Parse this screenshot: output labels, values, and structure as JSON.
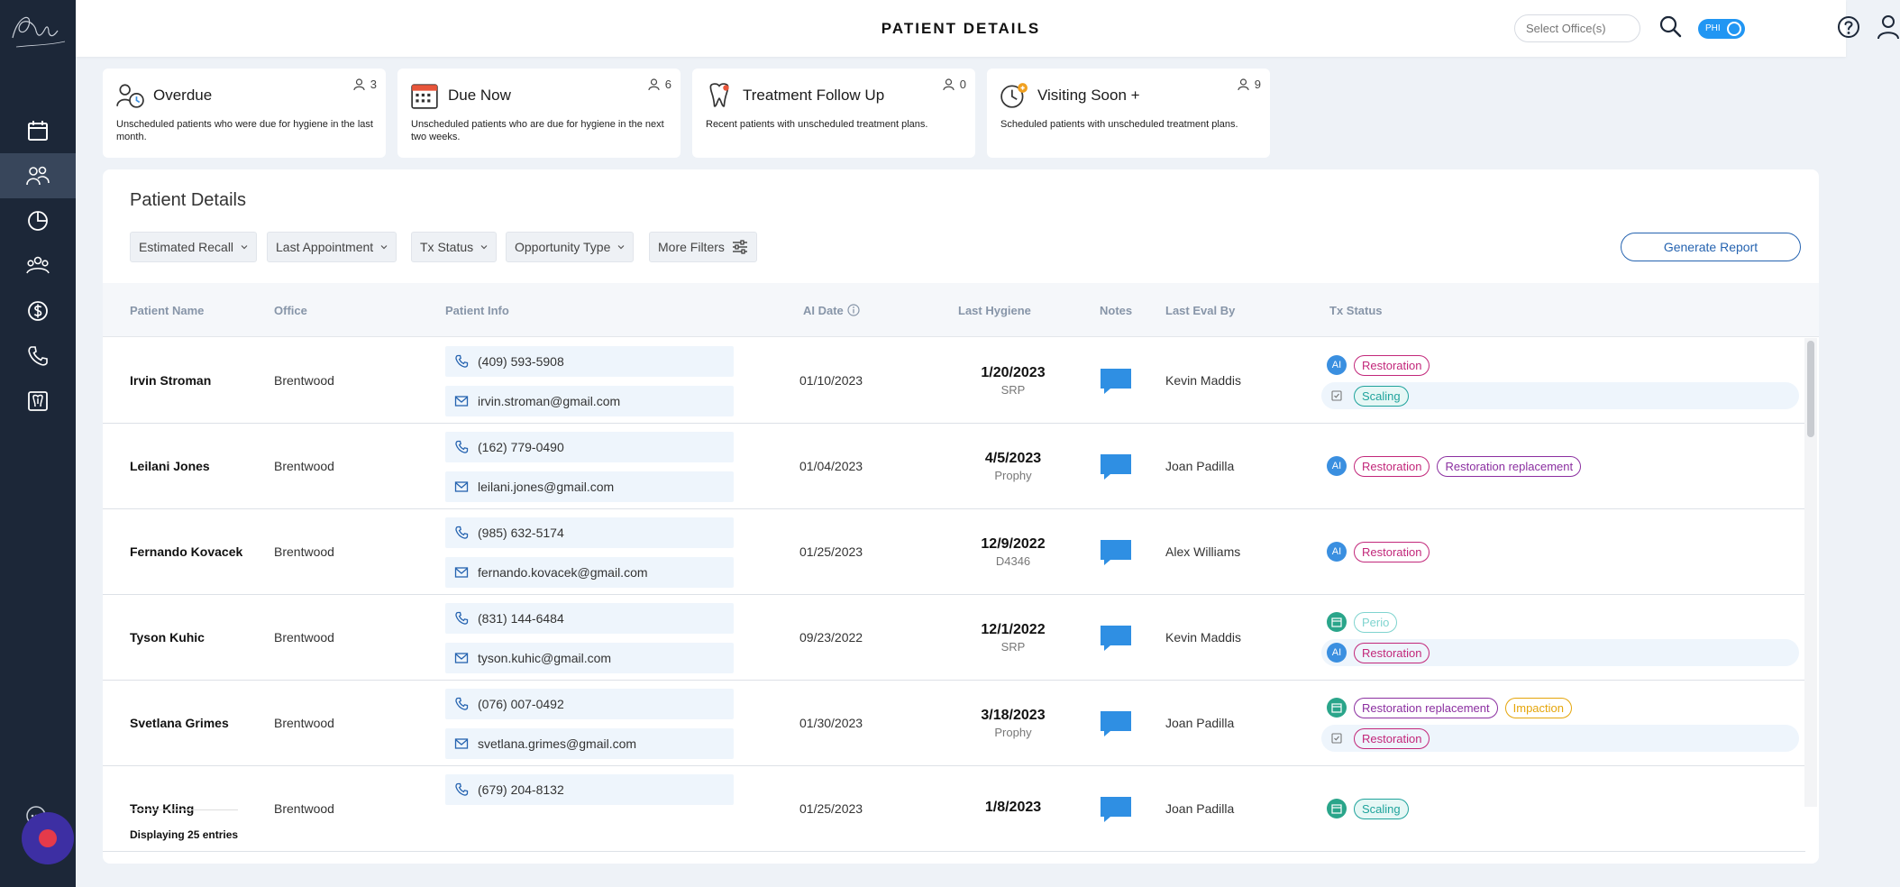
{
  "header": {
    "title": "PATIENT DETAILS",
    "office_placeholder": "Select Office(s)",
    "phi_label": "PHI"
  },
  "sidebar": {
    "logo_text": "Pearl",
    "items": [
      {
        "name": "calendar-icon",
        "active": false
      },
      {
        "name": "patients-icon",
        "active": true
      },
      {
        "name": "analytics-icon",
        "active": false
      },
      {
        "name": "team-icon",
        "active": false
      },
      {
        "name": "billing-icon",
        "active": false
      },
      {
        "name": "phone-icon",
        "active": false
      },
      {
        "name": "xray-icon",
        "active": false
      }
    ]
  },
  "summary_cards": [
    {
      "title": "Overdue",
      "count": "3",
      "description": "Unscheduled patients who were due for hygiene in the last month.",
      "icon": "overdue-icon"
    },
    {
      "title": "Due Now",
      "count": "6",
      "description": "Unscheduled patients who are due for hygiene in the next two weeks.",
      "icon": "calendar-grid-icon"
    },
    {
      "title": "Treatment Follow Up",
      "count": "0",
      "description": "Recent patients with unscheduled treatment plans.",
      "icon": "tooth-icon"
    },
    {
      "title": "Visiting Soon +",
      "count": "9",
      "description": "Scheduled patients with unscheduled treatment plans.",
      "icon": "visiting-soon-icon"
    }
  ],
  "panel": {
    "title": "Patient Details",
    "filters": [
      "Estimated Recall",
      "Last Appointment",
      "Tx Status",
      "Opportunity Type"
    ],
    "more_filters": "More Filters",
    "generate_report": "Generate Report",
    "footer": "Displaying 25 entries"
  },
  "table": {
    "columns": [
      "Patient Name",
      "Office",
      "Patient Info",
      "AI Date",
      "Last Hygiene",
      "Notes",
      "Last Eval By",
      "Tx Status"
    ],
    "rows": [
      {
        "name": "Irvin Stroman",
        "office": "Brentwood",
        "phone": "(409) 593-5908",
        "email": "irvin.stroman@gmail.com",
        "ai_date": "01/10/2023",
        "hygiene_date": "1/20/2023",
        "hygiene_type": "SRP",
        "eval_by": "Kevin Maddis",
        "tx": [
          {
            "icon": "ai",
            "pills": [
              {
                "label": "Restoration",
                "kind": "restoration"
              }
            ]
          },
          {
            "icon": "chk",
            "highlight": true,
            "pills": [
              {
                "label": "Scaling",
                "kind": "scaling"
              }
            ]
          }
        ]
      },
      {
        "name": "Leilani Jones",
        "office": "Brentwood",
        "phone": "(162) 779-0490",
        "email": "leilani.jones@gmail.com",
        "ai_date": "01/04/2023",
        "hygiene_date": "4/5/2023",
        "hygiene_type": "Prophy",
        "eval_by": "Joan Padilla",
        "tx": [
          {
            "icon": "ai",
            "pills": [
              {
                "label": "Restoration",
                "kind": "restoration"
              },
              {
                "label": "Restoration replacement",
                "kind": "replacement"
              }
            ]
          }
        ]
      },
      {
        "name": "Fernando Kovacek",
        "office": "Brentwood",
        "phone": "(985) 632-5174",
        "email": "fernando.kovacek@gmail.com",
        "ai_date": "01/25/2023",
        "hygiene_date": "12/9/2022",
        "hygiene_type": "D4346",
        "eval_by": "Alex Williams",
        "tx": [
          {
            "icon": "ai",
            "pills": [
              {
                "label": "Restoration",
                "kind": "restoration"
              }
            ]
          }
        ]
      },
      {
        "name": "Tyson Kuhic",
        "office": "Brentwood",
        "phone": "(831) 144-6484",
        "email": "tyson.kuhic@gmail.com",
        "ai_date": "09/23/2022",
        "hygiene_date": "12/1/2022",
        "hygiene_type": "SRP",
        "eval_by": "Kevin Maddis",
        "tx": [
          {
            "icon": "cal",
            "pills": [
              {
                "label": "Perio",
                "kind": "perio"
              }
            ]
          },
          {
            "icon": "ai",
            "highlight": true,
            "pills": [
              {
                "label": "Restoration",
                "kind": "restoration"
              }
            ]
          }
        ]
      },
      {
        "name": "Svetlana Grimes",
        "office": "Brentwood",
        "phone": "(076) 007-0492",
        "email": "svetlana.grimes@gmail.com",
        "ai_date": "01/30/2023",
        "hygiene_date": "3/18/2023",
        "hygiene_type": "Prophy",
        "eval_by": "Joan Padilla",
        "tx": [
          {
            "icon": "cal",
            "pills": [
              {
                "label": "Restoration replacement",
                "kind": "replacement"
              },
              {
                "label": "Impaction",
                "kind": "impaction"
              }
            ]
          },
          {
            "icon": "chk",
            "highlight": true,
            "pills": [
              {
                "label": "Restoration",
                "kind": "restoration"
              }
            ]
          }
        ]
      },
      {
        "name": "Tony Kling",
        "office": "Brentwood",
        "phone": "(679) 204-8132",
        "email": "",
        "ai_date": "01/25/2023",
        "hygiene_date": "1/8/2023",
        "hygiene_type": "",
        "eval_by": "Joan Padilla",
        "tx": [
          {
            "icon": "cal",
            "pills": [
              {
                "label": "Scaling",
                "kind": "scaling"
              }
            ]
          }
        ]
      }
    ]
  }
}
